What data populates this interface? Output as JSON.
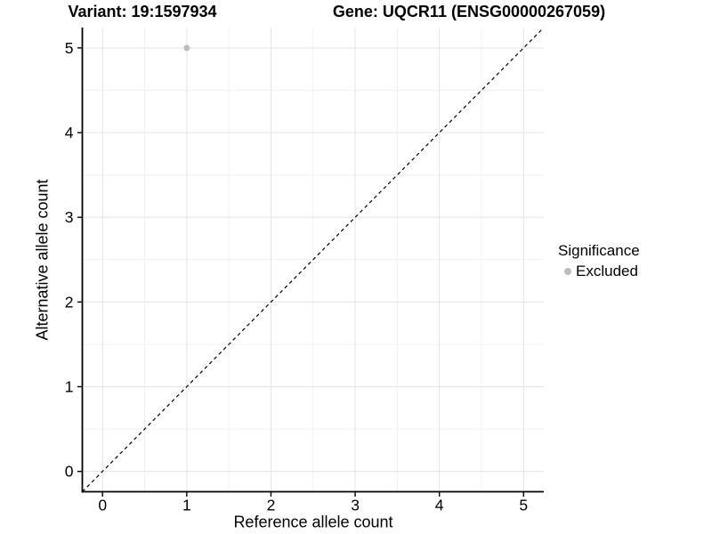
{
  "chart_data": {
    "type": "scatter",
    "title_left": "Variant: 19:1597934",
    "title_right": "Gene: UQCR11 (ENSG00000267059)",
    "xlabel": "Reference allele count",
    "ylabel": "Alternative allele count",
    "xlim": [
      -0.24,
      5.24
    ],
    "ylim": [
      -0.24,
      5.24
    ],
    "x_ticks": [
      0,
      1,
      2,
      3,
      4,
      5
    ],
    "y_ticks": [
      0,
      1,
      2,
      3,
      4,
      5
    ],
    "x_minor_ticks": [
      0.5,
      1.5,
      2.5,
      3.5,
      4.5
    ],
    "y_minor_ticks": [
      0.5,
      1.5,
      2.5,
      3.5,
      4.5
    ],
    "grid": "major+minor",
    "series": [
      {
        "name": "Excluded",
        "color": "#bcbcbc",
        "points": [
          {
            "x": 1,
            "y": 5
          }
        ]
      }
    ],
    "reference_line": {
      "kind": "abline",
      "slope": 1,
      "intercept": 0,
      "style": "dashed",
      "color": "#000000"
    },
    "legend": {
      "title": "Significance",
      "position": "right",
      "entries": [
        {
          "label": "Excluded",
          "color": "#bcbcbc"
        }
      ]
    },
    "colors": {
      "major_grid": "#e3e3e3",
      "minor_grid": "#f0f0f0",
      "axis_line": "#000000",
      "tick_label": "#000000"
    }
  }
}
